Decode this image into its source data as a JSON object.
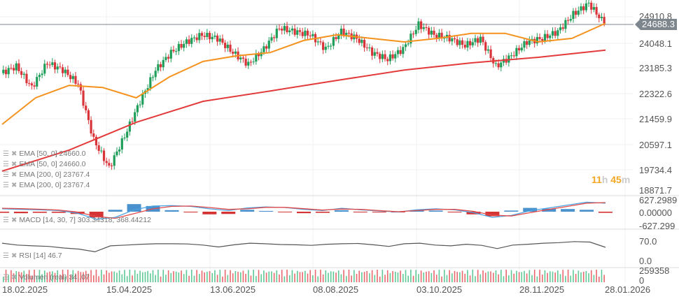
{
  "chart_data": {
    "type": "candlestick",
    "current_price": "24688.3",
    "y_ticks": [
      "24910.8",
      "24048.1",
      "23185.3",
      "22322.6",
      "21459.9",
      "20597.1",
      "19734.4",
      "18871.7"
    ],
    "x_ticks": [
      "18.02.2025",
      "15.04.2025",
      "13.06.2025",
      "08.08.2025",
      "03.10.2025",
      "28.11.2025",
      "28.01.2026"
    ],
    "closes": [
      23000,
      23230,
      22520,
      23350,
      23110,
      22640,
      20750,
      19800,
      20870,
      22050,
      23110,
      23700,
      24060,
      24300,
      24180,
      23700,
      23300,
      23820,
      24530,
      24410,
      24300,
      23820,
      24410,
      24180,
      23700,
      23470,
      23820,
      24650,
      24300,
      24180,
      23940,
      24180,
      23230,
      23590,
      24060,
      24180,
      24410,
      25000,
      25360,
      24688.3
    ],
    "ema50": [
      21270,
      22170,
      22590,
      22520,
      22170,
      22880,
      23400,
      23590,
      23700,
      24110,
      24300,
      24180,
      24060,
      24180,
      24350,
      24350,
      24060,
      24180,
      24688.3
    ],
    "ema200": [
      19690,
      20400,
      21340,
      22050,
      22400,
      22760,
      23110,
      23350,
      23540,
      23780
    ],
    "colors": {
      "up": "#1f9e5a",
      "down": "#d9343a",
      "ema50": "#f5921e",
      "ema200": "#e33b3b",
      "macd": "#4aa3e0",
      "signal": "#e34a4a"
    },
    "countdown": {
      "hours": "11",
      "h": "h",
      "minutes": "45",
      "m": "m"
    },
    "legends": {
      "ema1": "EMA [50, 0]  24660.0",
      "ema2": "EMA [50, 0]  24660.0",
      "ema3": "EMA [200, 0]  23767.4",
      "ema4": "EMA [200, 0]  23767.4"
    },
    "macd": {
      "label": "MACD [14, 30, 7]  303.34318,  368.44212",
      "ticks": [
        "627.2989",
        "0.00000",
        "-627.299"
      ],
      "line": [
        150,
        120,
        100,
        60,
        -80,
        -400,
        -300,
        100,
        300,
        320,
        280,
        150,
        60,
        200,
        250,
        220,
        120,
        60,
        180,
        100,
        40,
        -20,
        100,
        150,
        100,
        -50,
        -300,
        -200,
        50,
        200,
        350,
        500,
        450
      ],
      "signal": [
        180,
        160,
        130,
        90,
        -20,
        -250,
        -350,
        -100,
        150,
        280,
        300,
        220,
        120,
        150,
        230,
        230,
        160,
        90,
        140,
        120,
        60,
        0,
        60,
        120,
        120,
        20,
        -180,
        -230,
        -50,
        120,
        280,
        450,
        480
      ]
    },
    "rsi": {
      "label": "RSI [14]  46.7",
      "ticks": [
        "70.0",
        "0.0"
      ],
      "values": [
        62,
        55,
        52,
        50,
        44,
        40,
        30,
        52,
        55,
        58,
        60,
        60,
        59,
        55,
        48,
        56,
        62,
        60,
        57,
        56,
        54,
        58,
        60,
        61,
        56,
        50,
        60,
        62,
        55,
        52,
        58,
        54,
        42,
        55,
        58,
        62,
        64,
        68,
        66,
        46.7
      ]
    },
    "volume": {
      "label": "Volumen (real)  34..07",
      "ticks": [
        "259358",
        "0"
      ]
    }
  }
}
